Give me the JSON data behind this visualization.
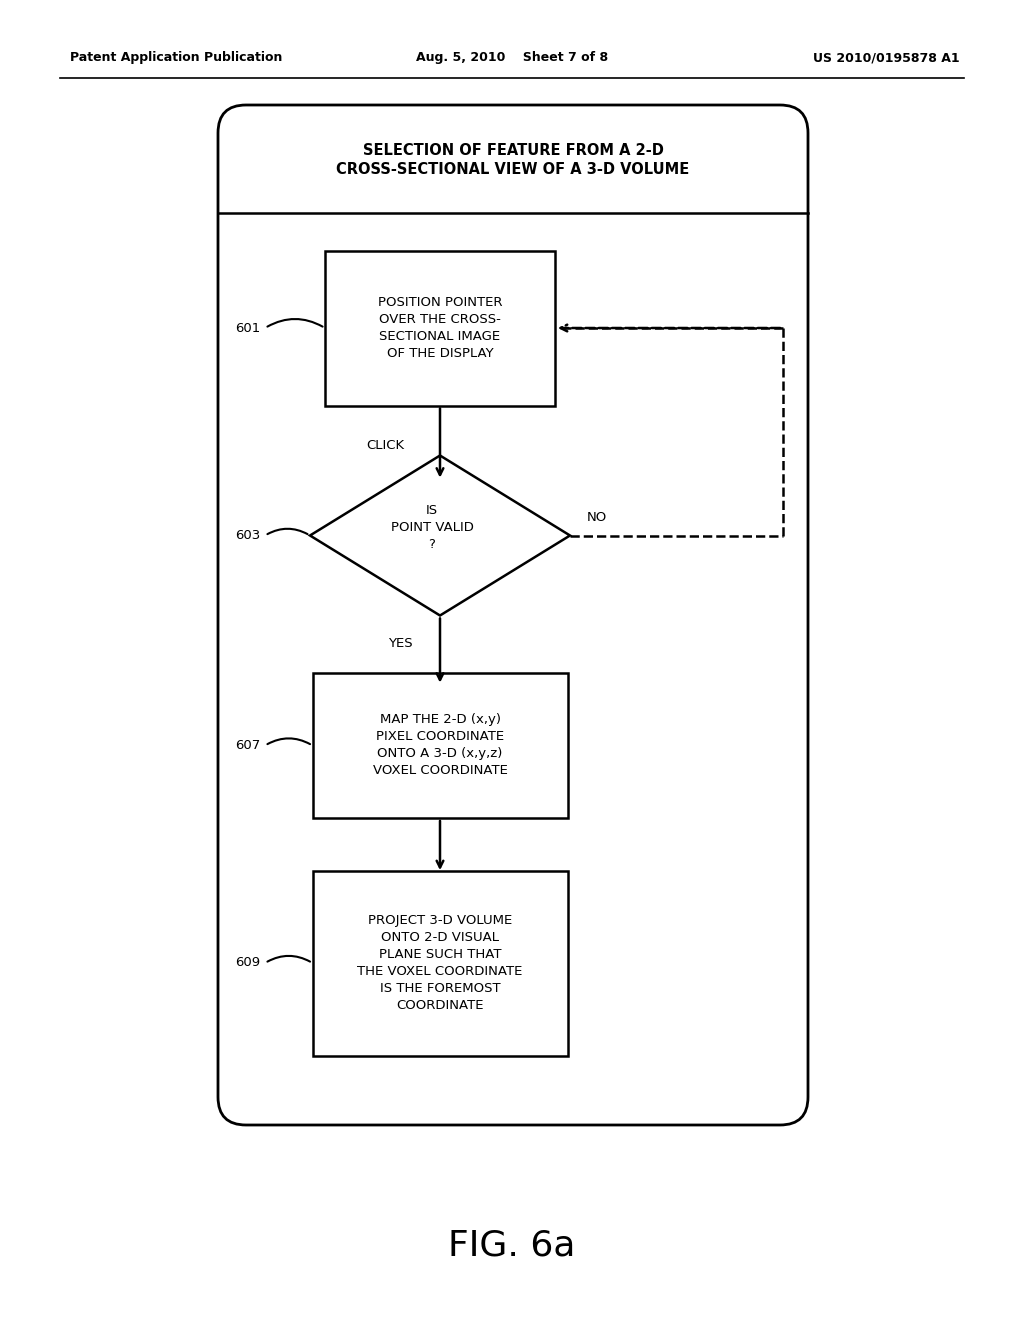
{
  "header_left": "Patent Application Publication",
  "header_center": "Aug. 5, 2010    Sheet 7 of 8",
  "header_right": "US 2010/0195878 A1",
  "figure_label": "FIG. 6a",
  "outer_box_title": "SELECTION OF FEATURE FROM A 2-D\nCROSS-SECTIONAL VIEW OF A 3-D VOLUME",
  "box601_text": "POSITION POINTER\nOVER THE CROSS-\nSECTIONAL IMAGE\nOF THE DISPLAY",
  "label601": "601",
  "click_label": "CLICK",
  "diamond603_text": "IS\nPOINT VALID\n?",
  "label603": "603",
  "no_label": "NO",
  "yes_label": "YES",
  "box607_text": "MAP THE 2-D (x,y)\nPIXEL COORDINATE\nONTO A 3-D (x,y,z)\nVOXEL COORDINATE",
  "label607": "607",
  "box609_text": "PROJECT 3-D VOLUME\nONTO 2-D VISUAL\nPLANE SUCH THAT\nTHE VOXEL COORDINATE\nIS THE FOREMOST\nCOORDINATE",
  "label609": "609",
  "bg_color": "#ffffff",
  "box_color": "#000000",
  "text_color": "#000000"
}
